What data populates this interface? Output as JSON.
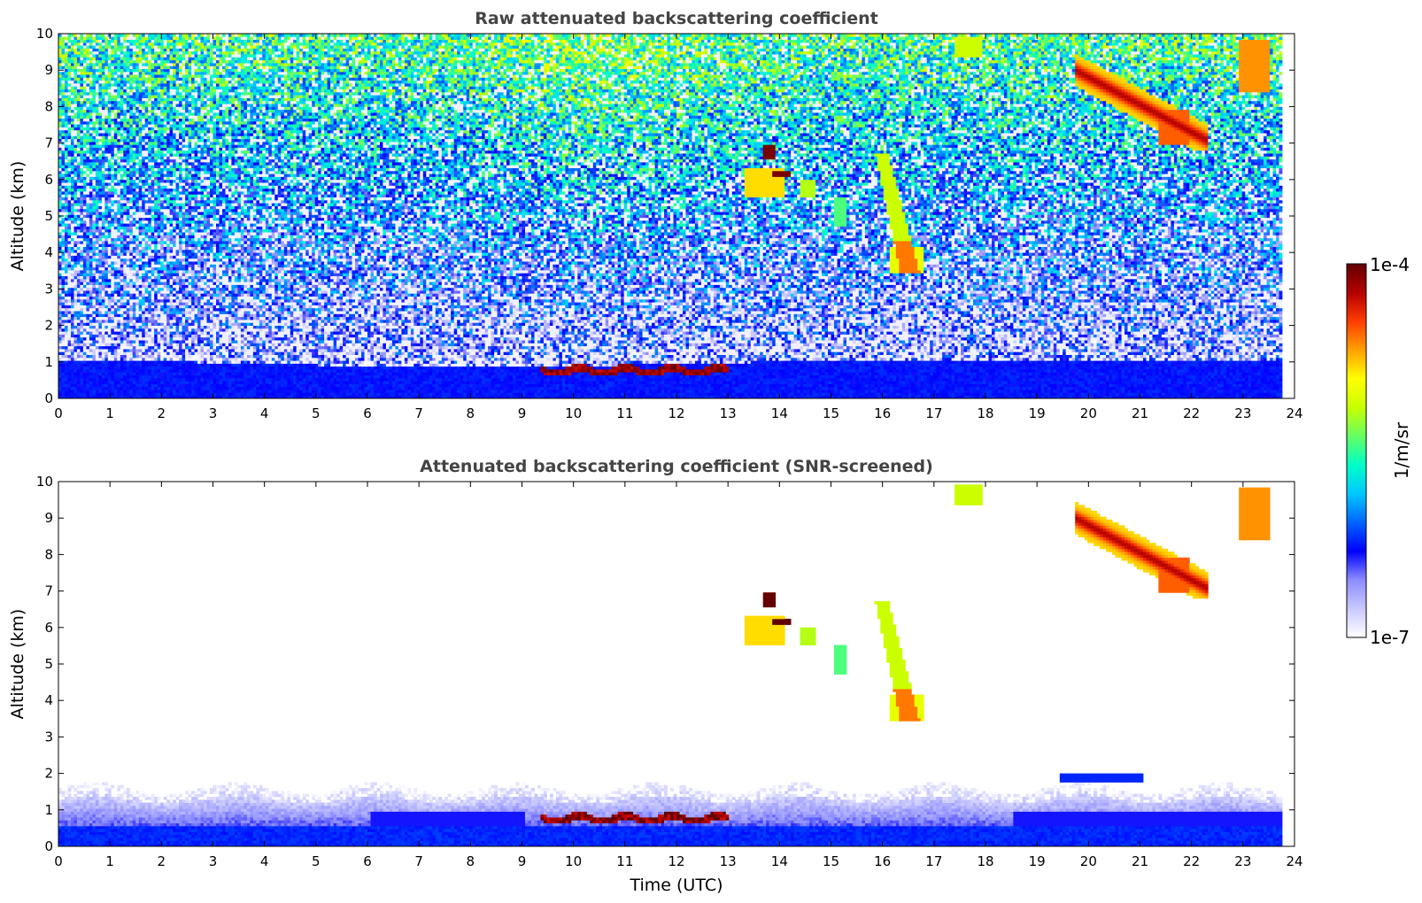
{
  "colors": {
    "colormap": [
      "#ffffff",
      "#c8c8ff",
      "#8c8cff",
      "#0000ff",
      "#0064ff",
      "#00c8ff",
      "#00ffc8",
      "#64ff64",
      "#c8ff00",
      "#ffff00",
      "#ffa000",
      "#ff3c00",
      "#b40000",
      "#640000"
    ],
    "near_surface_blue": "#0a14ff"
  },
  "chart_data": [
    {
      "type": "heatmap",
      "title": "Raw attenuated backscattering coefficient",
      "xlabel": "",
      "ylabel": "Altitude (km)",
      "xlim": [
        0,
        24
      ],
      "ylim": [
        0,
        10
      ],
      "xticks": [
        0,
        1,
        2,
        3,
        4,
        5,
        6,
        7,
        8,
        9,
        10,
        11,
        12,
        13,
        14,
        15,
        16,
        17,
        18,
        19,
        20,
        21,
        22,
        23,
        24
      ],
      "yticks": [
        0,
        1,
        2,
        3,
        4,
        5,
        6,
        7,
        8,
        9,
        10
      ],
      "data_end_time": 23.7,
      "screened": false,
      "features": [
        {
          "name": "boundary layer",
          "time": [
            0,
            23.7
          ],
          "altitude": [
            0,
            1.0
          ],
          "level": 0.28
        },
        {
          "name": "aerosol top layer",
          "time": [
            9.3,
            13.0
          ],
          "altitude": [
            0.65,
            0.95
          ],
          "level": 0.95
        },
        {
          "name": "falling cloud streak",
          "time": [
            15.9,
            16.8
          ],
          "altitude": [
            3.4,
            6.7
          ],
          "level": 0.68
        },
        {
          "name": "cloud 14h",
          "time": [
            13.3,
            14.2
          ],
          "altitude": [
            5.5,
            6.9
          ],
          "level": 0.7
        },
        {
          "name": "cirrus 20-22h",
          "time": [
            19.7,
            22.3
          ],
          "altitude": [
            6.8,
            9.6
          ],
          "level": 0.85
        },
        {
          "name": "cirrus 23h",
          "time": [
            22.9,
            23.5
          ],
          "altitude": [
            8.4,
            9.9
          ],
          "level": 0.8
        }
      ]
    },
    {
      "type": "heatmap",
      "title": "Attenuated backscattering coefficient (SNR-screened)",
      "xlabel": "Time (UTC)",
      "ylabel": "Altitude (km)",
      "xlim": [
        0,
        24
      ],
      "ylim": [
        0,
        10
      ],
      "xticks": [
        0,
        1,
        2,
        3,
        4,
        5,
        6,
        7,
        8,
        9,
        10,
        11,
        12,
        13,
        14,
        15,
        16,
        17,
        18,
        19,
        20,
        21,
        22,
        23,
        24
      ],
      "yticks": [
        0,
        1,
        2,
        3,
        4,
        5,
        6,
        7,
        8,
        9,
        10
      ],
      "data_end_time": 23.7,
      "screened": true,
      "features": [
        {
          "name": "boundary layer",
          "time": [
            0,
            23.7
          ],
          "altitude": [
            0,
            1.8
          ],
          "level": 0.28
        },
        {
          "name": "aerosol top layer",
          "time": [
            9.3,
            13.0
          ],
          "altitude": [
            0.65,
            0.95
          ],
          "level": 0.95
        },
        {
          "name": "falling cloud streak",
          "time": [
            15.9,
            16.8
          ],
          "altitude": [
            3.4,
            6.7
          ],
          "level": 0.68
        },
        {
          "name": "cloud 14h",
          "time": [
            13.3,
            14.2
          ],
          "altitude": [
            5.5,
            6.9
          ],
          "level": 0.7
        },
        {
          "name": "cirrus 20-22h",
          "time": [
            19.7,
            22.3
          ],
          "altitude": [
            6.8,
            9.6
          ],
          "level": 0.85
        },
        {
          "name": "cirrus 23h",
          "time": [
            22.9,
            23.5
          ],
          "altitude": [
            8.4,
            9.9
          ],
          "level": 0.8
        }
      ]
    }
  ],
  "colorbar": {
    "label": "1/m/sr",
    "max_label": "1e-4",
    "min_label": "1e-7",
    "range": [
      "1e-7",
      "1e-4"
    ],
    "scale": "log"
  }
}
